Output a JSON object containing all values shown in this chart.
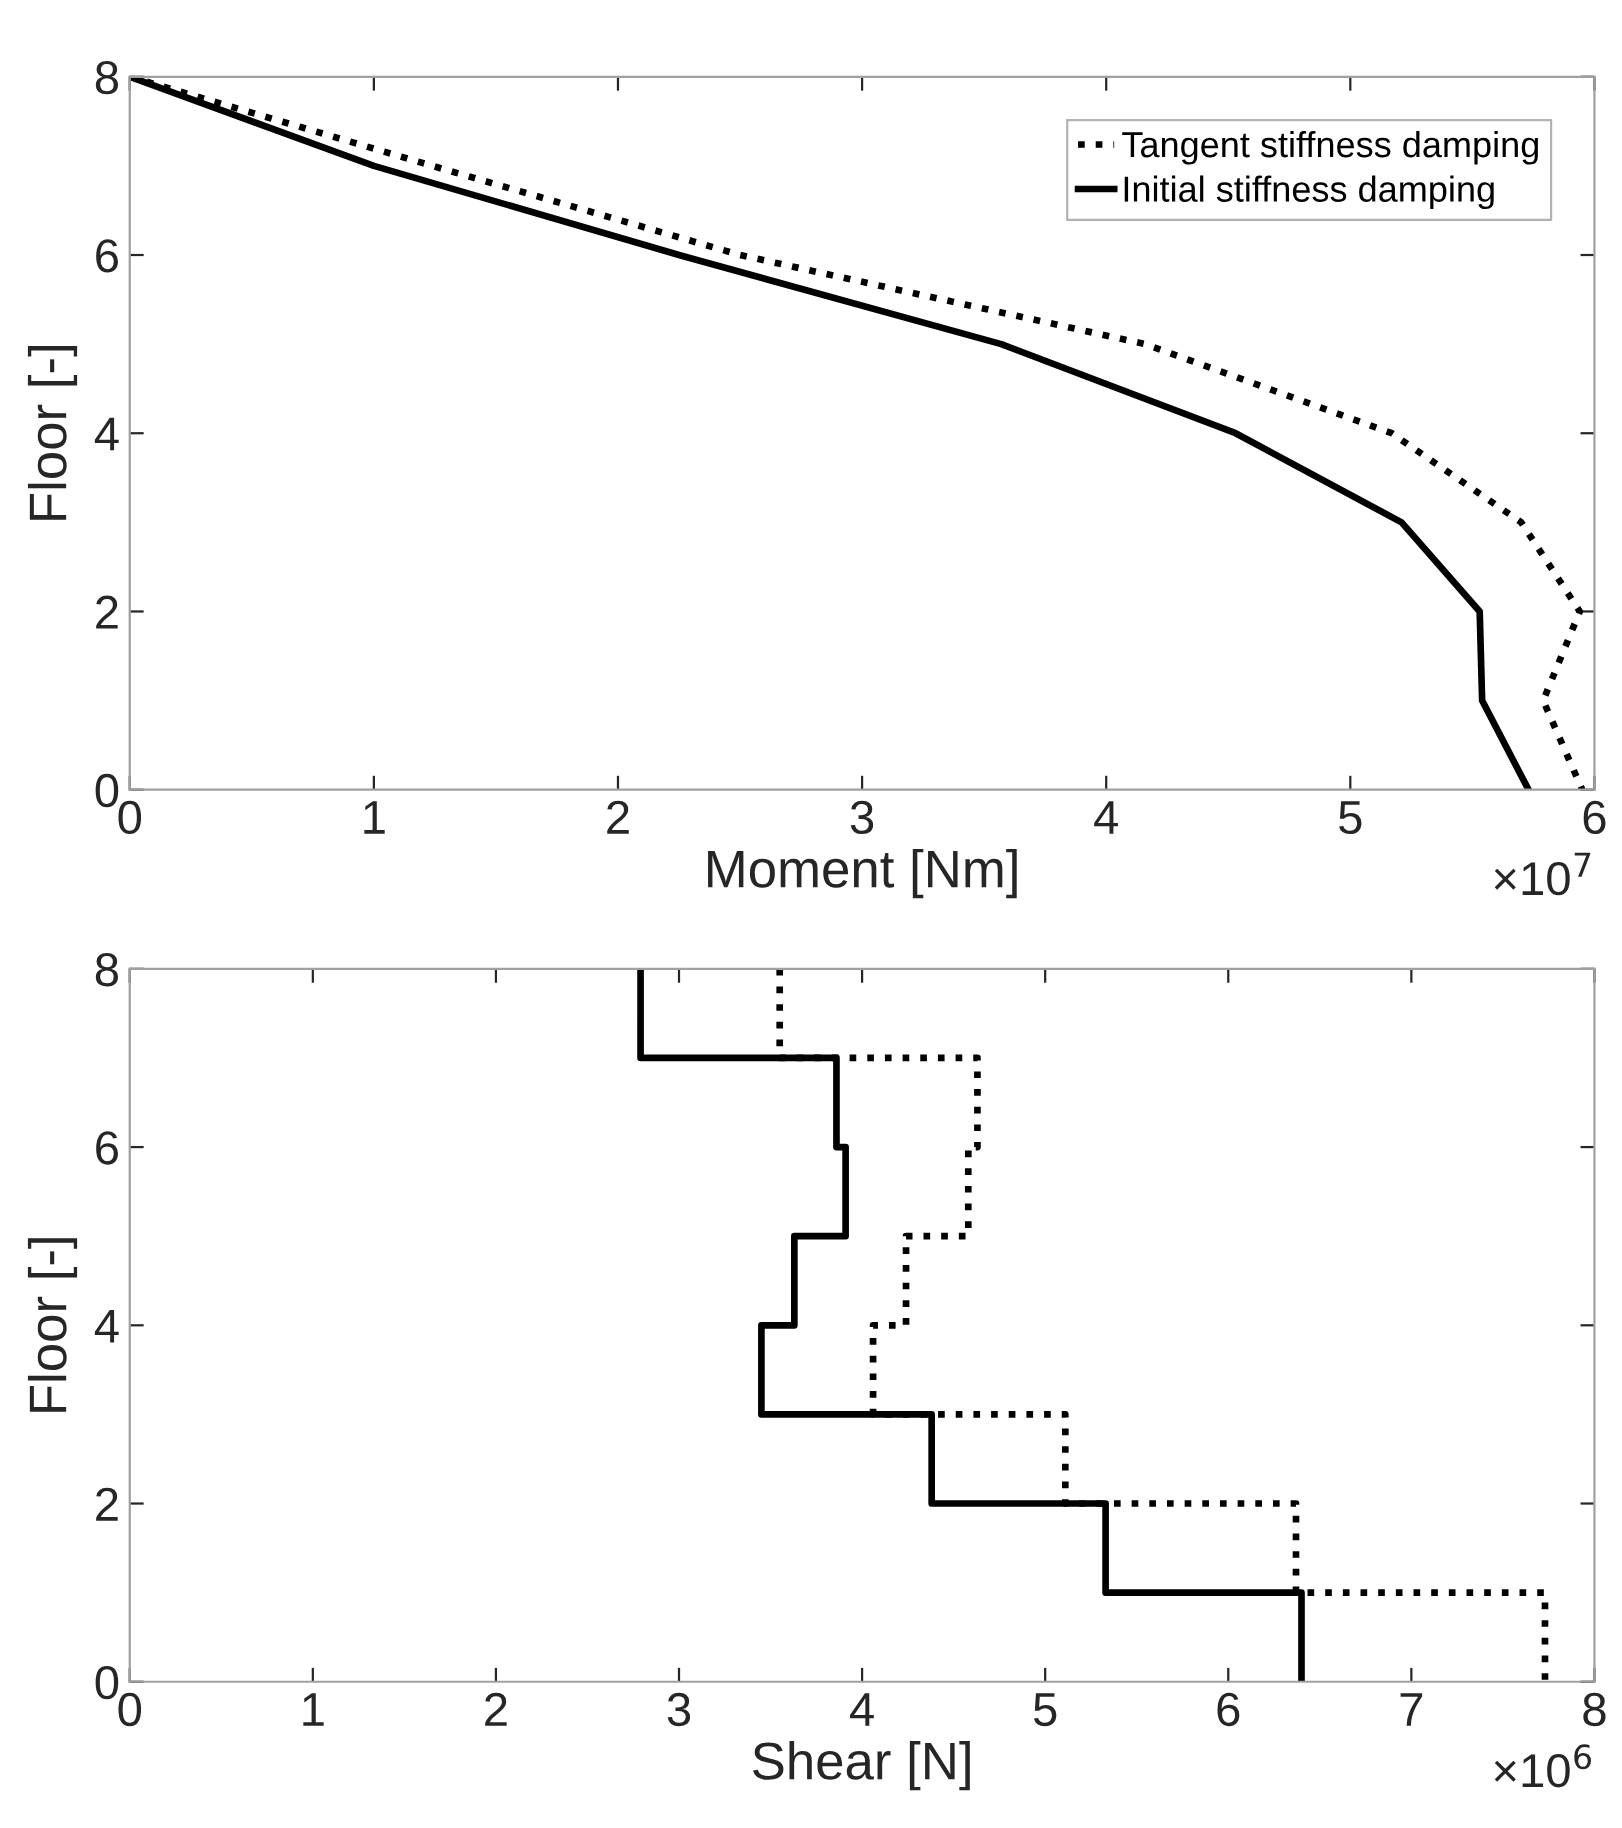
{
  "chart_data": [
    {
      "type": "line",
      "xlabel": "Moment [Nm]",
      "ylabel": "Floor [-]",
      "xlim": [
        0,
        6
      ],
      "xticks": [
        0,
        1,
        2,
        3,
        4,
        5,
        6
      ],
      "ylim": [
        0,
        8
      ],
      "yticks": [
        0,
        2,
        4,
        6,
        8
      ],
      "legend": "top right",
      "annotations": [
        "×10$^{7}$"
      ],
      "series": [
        {
          "name": "Tangent stiffness damping",
          "color": "#000000",
          "line_style": "dotted",
          "x": [
            0,
            1.24,
            2.5,
            4.16,
            5.17,
            5.7,
            5.94,
            5.79,
            5.95
          ],
          "values": [
            8,
            7,
            6,
            5,
            4,
            3,
            2,
            1,
            0
          ]
        },
        {
          "name": "Initial stiffness damping",
          "color": "#000000",
          "line_style": "solid",
          "x": [
            0,
            1.0,
            2.25,
            3.57,
            4.53,
            5.21,
            5.53,
            5.54,
            5.73
          ],
          "values": [
            8,
            7,
            6,
            5,
            4,
            3,
            2,
            1,
            0
          ]
        }
      ]
    },
    {
      "type": "line",
      "xlabel": "Shear [N]",
      "ylabel": "Floor [-]",
      "xlim": [
        0,
        8
      ],
      "xticks": [
        0,
        1,
        2,
        3,
        4,
        5,
        6,
        7,
        8
      ],
      "ylim": [
        0,
        8
      ],
      "yticks": [
        0,
        2,
        4,
        6,
        8
      ],
      "annotations": [
        "×10$^{6}$"
      ],
      "series": [
        {
          "color": "#000000",
          "line_style": "dotted",
          "x": [
            3.55,
            3.55,
            4.63,
            4.63,
            4.58,
            4.58,
            4.24,
            4.24,
            4.06,
            4.06,
            5.11,
            5.11,
            6.37,
            6.37,
            7.73,
            7.73
          ],
          "values": [
            8,
            7,
            7,
            6,
            6,
            5,
            5,
            4,
            4,
            3,
            3,
            2,
            2,
            1,
            1,
            0
          ]
        },
        {
          "color": "#000000",
          "line_style": "solid",
          "x": [
            2.79,
            2.79,
            3.86,
            3.86,
            3.91,
            3.91,
            3.63,
            3.63,
            3.45,
            3.45,
            4.38,
            4.38,
            5.33,
            5.33,
            6.4,
            6.4
          ],
          "values": [
            8,
            7,
            7,
            6,
            6,
            5,
            5,
            4,
            4,
            3,
            3,
            2,
            2,
            1,
            1,
            0
          ]
        }
      ]
    }
  ]
}
